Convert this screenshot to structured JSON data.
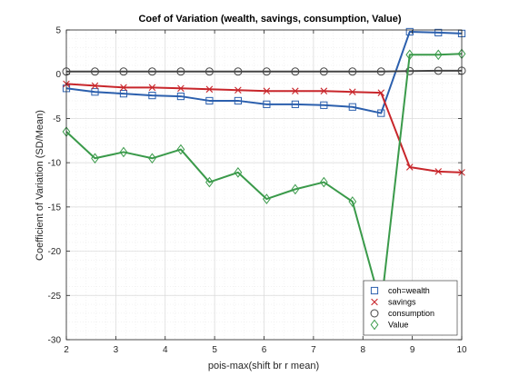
{
  "chart_data": {
    "type": "line",
    "title": "Coef of Variation (wealth, savings, consumption, Value)",
    "xlabel": "pois-max(shift br r mean)",
    "ylabel": "Coefficient of Variation (SD/Mean)",
    "xlim": [
      2,
      10
    ],
    "ylim": [
      -30,
      5
    ],
    "xticks": [
      2,
      3,
      4,
      5,
      6,
      7,
      8,
      9,
      10
    ],
    "yticks": [
      -30,
      -25,
      -20,
      -15,
      -10,
      -5,
      0,
      5
    ],
    "grid": true,
    "minor_grid": true,
    "legend_position": "bottom-right",
    "x": [
      2.0,
      2.5789,
      3.1579,
      3.7368,
      4.3158,
      4.8947,
      5.4737,
      6.0526,
      6.6316,
      7.2105,
      7.7895,
      8.3684,
      8.9474,
      9.5263,
      10.0
    ],
    "series": [
      {
        "name": "coh=wealth",
        "color": "#2b5fad",
        "marker": "square",
        "values": [
          -1.6,
          -2.0,
          -2.2,
          -2.4,
          -2.5,
          -3.0,
          -3.0,
          -3.4,
          -3.4,
          -3.5,
          -3.7,
          -4.4,
          4.8,
          4.7,
          4.6
        ]
      },
      {
        "name": "savings",
        "color": "#c8262b",
        "marker": "x",
        "values": [
          -1.1,
          -1.3,
          -1.5,
          -1.5,
          -1.6,
          -1.7,
          -1.8,
          -1.9,
          -1.9,
          -1.9,
          -2.0,
          -2.1,
          -10.5,
          -11.0,
          -11.1
        ]
      },
      {
        "name": "consumption",
        "color": "#444444",
        "marker": "circle",
        "values": [
          0.3,
          0.3,
          0.3,
          0.3,
          0.3,
          0.3,
          0.3,
          0.3,
          0.3,
          0.3,
          0.3,
          0.3,
          0.35,
          0.4,
          0.4
        ]
      },
      {
        "name": "Value",
        "color": "#3a9a4a",
        "marker": "diamond",
        "values": [
          -6.5,
          -9.5,
          -8.8,
          -9.5,
          -8.5,
          -12.2,
          -11.1,
          -14.1,
          -13.0,
          -12.2,
          -14.4,
          -26.2,
          2.2,
          2.2,
          2.3
        ]
      }
    ]
  }
}
